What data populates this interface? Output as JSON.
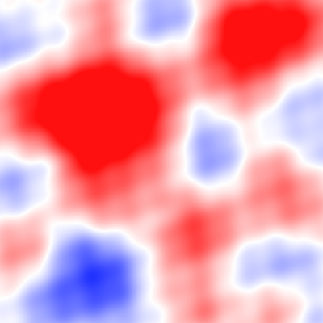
{
  "image": {
    "kind": "smooth random noise field, red-white-blue diverging colormap",
    "colormap": {
      "negative": "#1a2bff",
      "neutral": "#ffffff",
      "positive": "#ff1010"
    }
  }
}
